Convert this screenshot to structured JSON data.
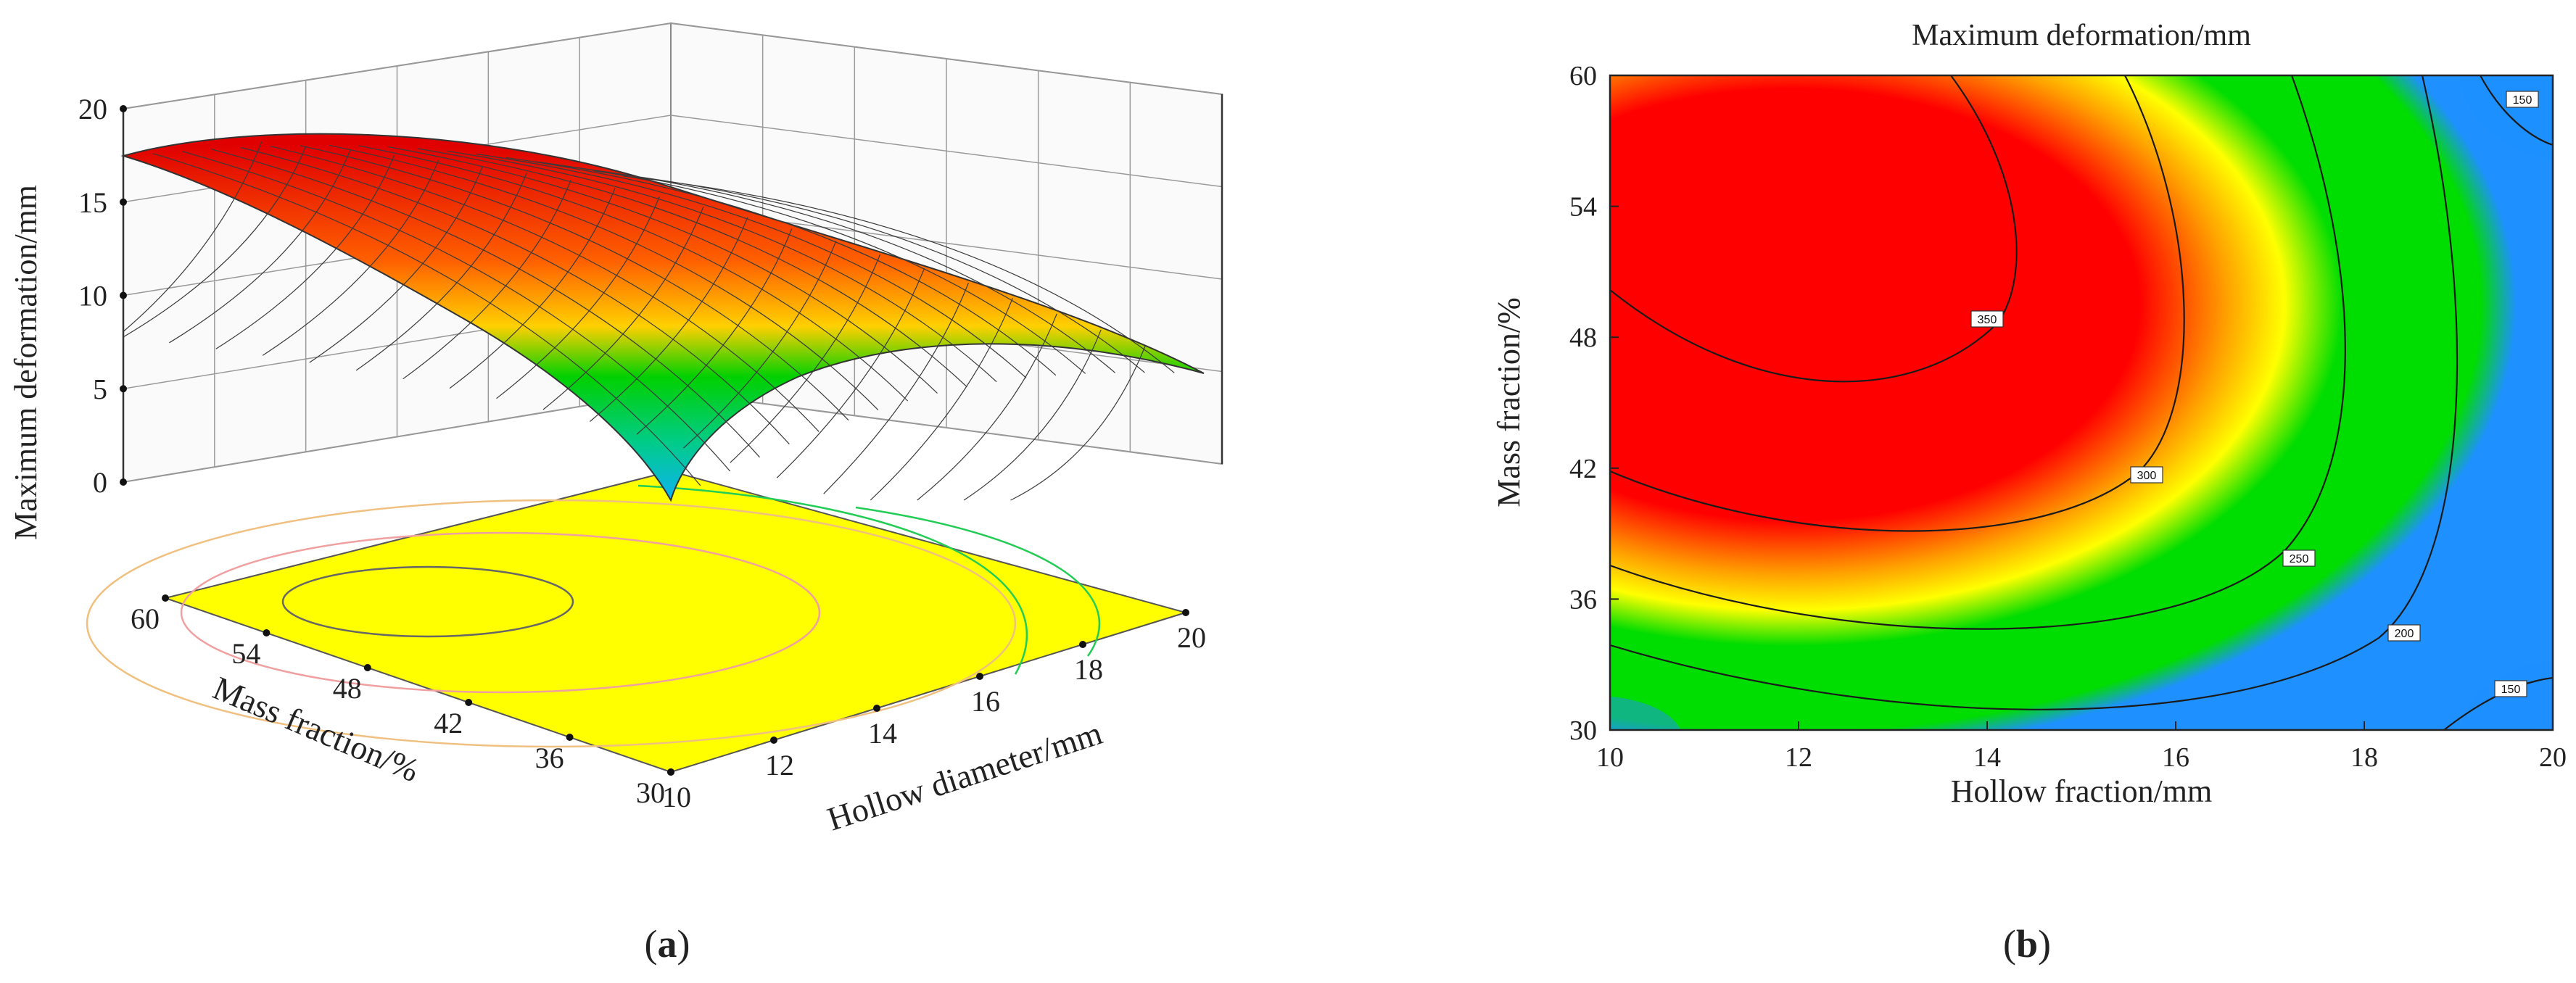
{
  "panels": {
    "a": {
      "label": "a"
    },
    "b": {
      "label": "b"
    }
  },
  "chart_data": [
    {
      "panel": "a",
      "type": "surface",
      "title": "",
      "zlabel": "Maximum deformation/mm",
      "xlabel": "Hollow diameter/mm",
      "ylabel": "Mass fraction/%",
      "x_ticks": [
        10,
        12,
        14,
        16,
        18,
        20
      ],
      "y_ticks": [
        30,
        36,
        42,
        48,
        54,
        60
      ],
      "z_ticks": [
        0,
        5,
        10,
        15,
        20
      ],
      "xlim": [
        10,
        20
      ],
      "ylim": [
        30,
        60
      ],
      "zlim": [
        0,
        20
      ],
      "grid": true,
      "corners": [
        {
          "x": 10,
          "y": 60,
          "z": 17.5
        },
        {
          "x": 20,
          "y": 60,
          "z": 6.0
        },
        {
          "x": 20,
          "y": 30,
          "z": 0.3
        },
        {
          "x": 10,
          "y": 30,
          "z": 1.0
        }
      ],
      "peak": {
        "x": 13,
        "y": 49,
        "z": 18.0
      },
      "colors": {
        "high": "#e00000",
        "mid": "#ffff00",
        "low": "#00d000",
        "lowest": "#1aa0ff",
        "floor": "#ffff00"
      }
    },
    {
      "panel": "b",
      "type": "heatmap",
      "title": "Maximum deformation/mm",
      "xlabel": "Hollow fraction/mm",
      "ylabel": "Mass fraction/%",
      "x_ticks": [
        10,
        12,
        14,
        16,
        18,
        20
      ],
      "y_ticks": [
        30,
        36,
        42,
        48,
        54,
        60
      ],
      "xlim": [
        10,
        20
      ],
      "ylim": [
        30,
        60
      ],
      "contour_labels": [
        "350",
        "300",
        "250",
        "200",
        "150",
        "150"
      ],
      "peak": {
        "x": 13,
        "y": 49
      },
      "colors": {
        "high": "#ff0000",
        "mid": "#ffff00",
        "low": "#00dd00",
        "lowest": "#1e90ff"
      }
    }
  ]
}
